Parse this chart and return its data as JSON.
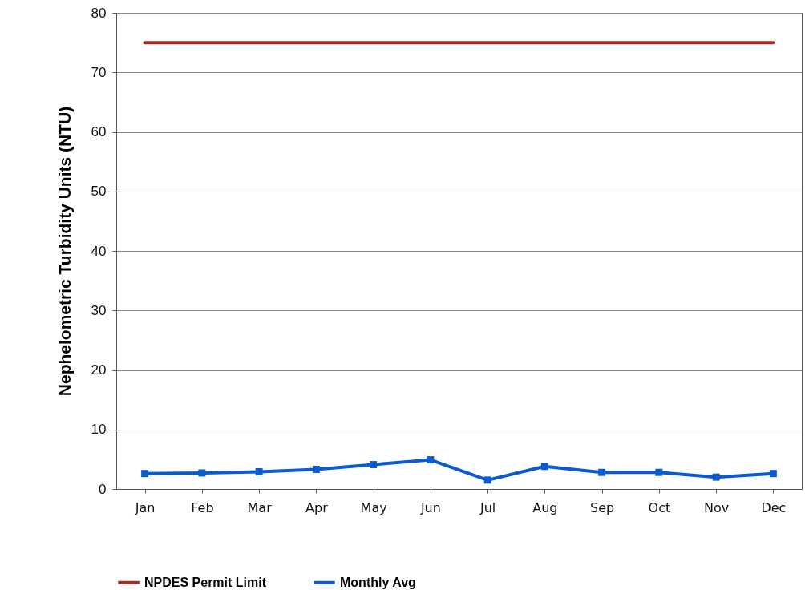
{
  "chart_data": {
    "type": "line",
    "ylabel": "Nephelometric Turbidity Units (NTU)",
    "categories": [
      "Jan",
      "Feb",
      "Mar",
      "Apr",
      "May",
      "Jun",
      "Jul",
      "Aug",
      "Sep",
      "Oct",
      "Nov",
      "Dec"
    ],
    "series": [
      {
        "name": "NPDES Permit Limit",
        "color": "#a52a24",
        "marker": "none",
        "values": [
          75,
          75,
          75,
          75,
          75,
          75,
          75,
          75,
          75,
          75,
          75,
          75
        ]
      },
      {
        "name": "Monthly Avg",
        "color": "#0a5ad0",
        "marker": "square",
        "values": [
          2.6,
          2.7,
          2.9,
          3.3,
          4.1,
          4.9,
          1.5,
          3.8,
          2.8,
          2.8,
          2.0,
          2.6
        ]
      }
    ],
    "ylim": [
      0,
      80
    ],
    "yticks": [
      0,
      10,
      20,
      30,
      40,
      50,
      60,
      70,
      80
    ],
    "grid": "y",
    "legend": "bottom"
  }
}
